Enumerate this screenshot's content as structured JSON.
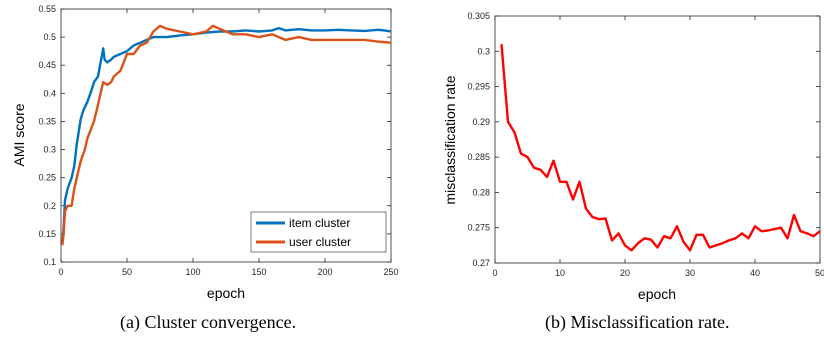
{
  "captions": {
    "left": "(a) Cluster convergence.",
    "right": "(b) Misclassification rate."
  },
  "chart_data": [
    {
      "type": "line",
      "xlabel": "epoch",
      "ylabel": "AMI score",
      "xlim": [
        0,
        250
      ],
      "ylim": [
        0.1,
        0.55
      ],
      "xticks": [
        "0",
        "50",
        "100",
        "150",
        "200",
        "250"
      ],
      "yticks": [
        "0.1",
        "0.15",
        "0.2",
        "0.25",
        "0.3",
        "0.35",
        "0.4",
        "0.45",
        "0.5",
        "0.55"
      ],
      "grid": false,
      "legend": "bottom-right",
      "series": [
        {
          "name": "item cluster",
          "color": "#0072BD",
          "x": [
            1,
            2,
            3,
            5,
            8,
            10,
            12,
            15,
            17,
            20,
            23,
            25,
            28,
            30,
            32,
            33,
            35,
            38,
            40,
            45,
            50,
            55,
            60,
            65,
            70,
            80,
            90,
            100,
            110,
            120,
            130,
            140,
            150,
            160,
            165,
            170,
            180,
            190,
            200,
            210,
            220,
            230,
            240,
            245,
            250
          ],
          "y": [
            0.13,
            0.16,
            0.21,
            0.23,
            0.25,
            0.27,
            0.31,
            0.355,
            0.37,
            0.385,
            0.405,
            0.42,
            0.43,
            0.455,
            0.48,
            0.46,
            0.455,
            0.46,
            0.465,
            0.47,
            0.475,
            0.485,
            0.49,
            0.495,
            0.5,
            0.5,
            0.503,
            0.505,
            0.508,
            0.51,
            0.51,
            0.512,
            0.51,
            0.512,
            0.516,
            0.512,
            0.514,
            0.512,
            0.512,
            0.513,
            0.512,
            0.511,
            0.513,
            0.512,
            0.51
          ]
        },
        {
          "name": "user cluster",
          "color": "#D95319",
          "x": [
            1,
            2,
            3,
            5,
            8,
            10,
            12,
            15,
            18,
            20,
            25,
            28,
            30,
            32,
            35,
            38,
            40,
            45,
            50,
            55,
            60,
            65,
            70,
            75,
            80,
            90,
            100,
            110,
            115,
            120,
            125,
            130,
            140,
            150,
            160,
            170,
            180,
            190,
            200,
            210,
            220,
            230,
            240,
            250
          ],
          "y": [
            0.13,
            0.15,
            0.19,
            0.2,
            0.2,
            0.23,
            0.25,
            0.28,
            0.3,
            0.32,
            0.35,
            0.38,
            0.4,
            0.42,
            0.415,
            0.42,
            0.43,
            0.44,
            0.47,
            0.47,
            0.485,
            0.49,
            0.51,
            0.52,
            0.515,
            0.51,
            0.505,
            0.51,
            0.52,
            0.515,
            0.51,
            0.505,
            0.505,
            0.5,
            0.505,
            0.495,
            0.5,
            0.495,
            0.495,
            0.495,
            0.495,
            0.495,
            0.492,
            0.49
          ]
        }
      ]
    },
    {
      "type": "line",
      "xlabel": "epoch",
      "ylabel": "misclassification rate",
      "xlim": [
        0,
        50
      ],
      "ylim": [
        0.27,
        0.305
      ],
      "xticks": [
        "0",
        "10",
        "20",
        "30",
        "40",
        "50"
      ],
      "yticks": [
        "0.27",
        "0.275",
        "0.28",
        "0.285",
        "0.29",
        "0.295",
        "0.3",
        "0.305"
      ],
      "grid": false,
      "series": [
        {
          "color": "#FF0000",
          "x": [
            1,
            2,
            3,
            4,
            5,
            6,
            7,
            8,
            9,
            10,
            11,
            12,
            13,
            14,
            15,
            16,
            17,
            18,
            19,
            20,
            21,
            22,
            23,
            24,
            25,
            26,
            27,
            28,
            29,
            30,
            31,
            32,
            33,
            34,
            35,
            36,
            37,
            38,
            39,
            40,
            41,
            42,
            43,
            44,
            45,
            46,
            47,
            48,
            49,
            50
          ],
          "y": [
            0.301,
            0.29,
            0.2885,
            0.2855,
            0.285,
            0.2835,
            0.2832,
            0.2822,
            0.2845,
            0.2815,
            0.2815,
            0.279,
            0.2815,
            0.2777,
            0.2765,
            0.2762,
            0.2763,
            0.2732,
            0.2742,
            0.2725,
            0.2718,
            0.2728,
            0.2735,
            0.2733,
            0.2722,
            0.2738,
            0.2735,
            0.2752,
            0.273,
            0.2718,
            0.274,
            0.274,
            0.2722,
            0.2725,
            0.2728,
            0.2732,
            0.2735,
            0.2742,
            0.2735,
            0.2752,
            0.2745,
            0.2746,
            0.2748,
            0.275,
            0.2735,
            0.2768,
            0.2745,
            0.2742,
            0.2738,
            0.2745
          ]
        }
      ]
    }
  ]
}
